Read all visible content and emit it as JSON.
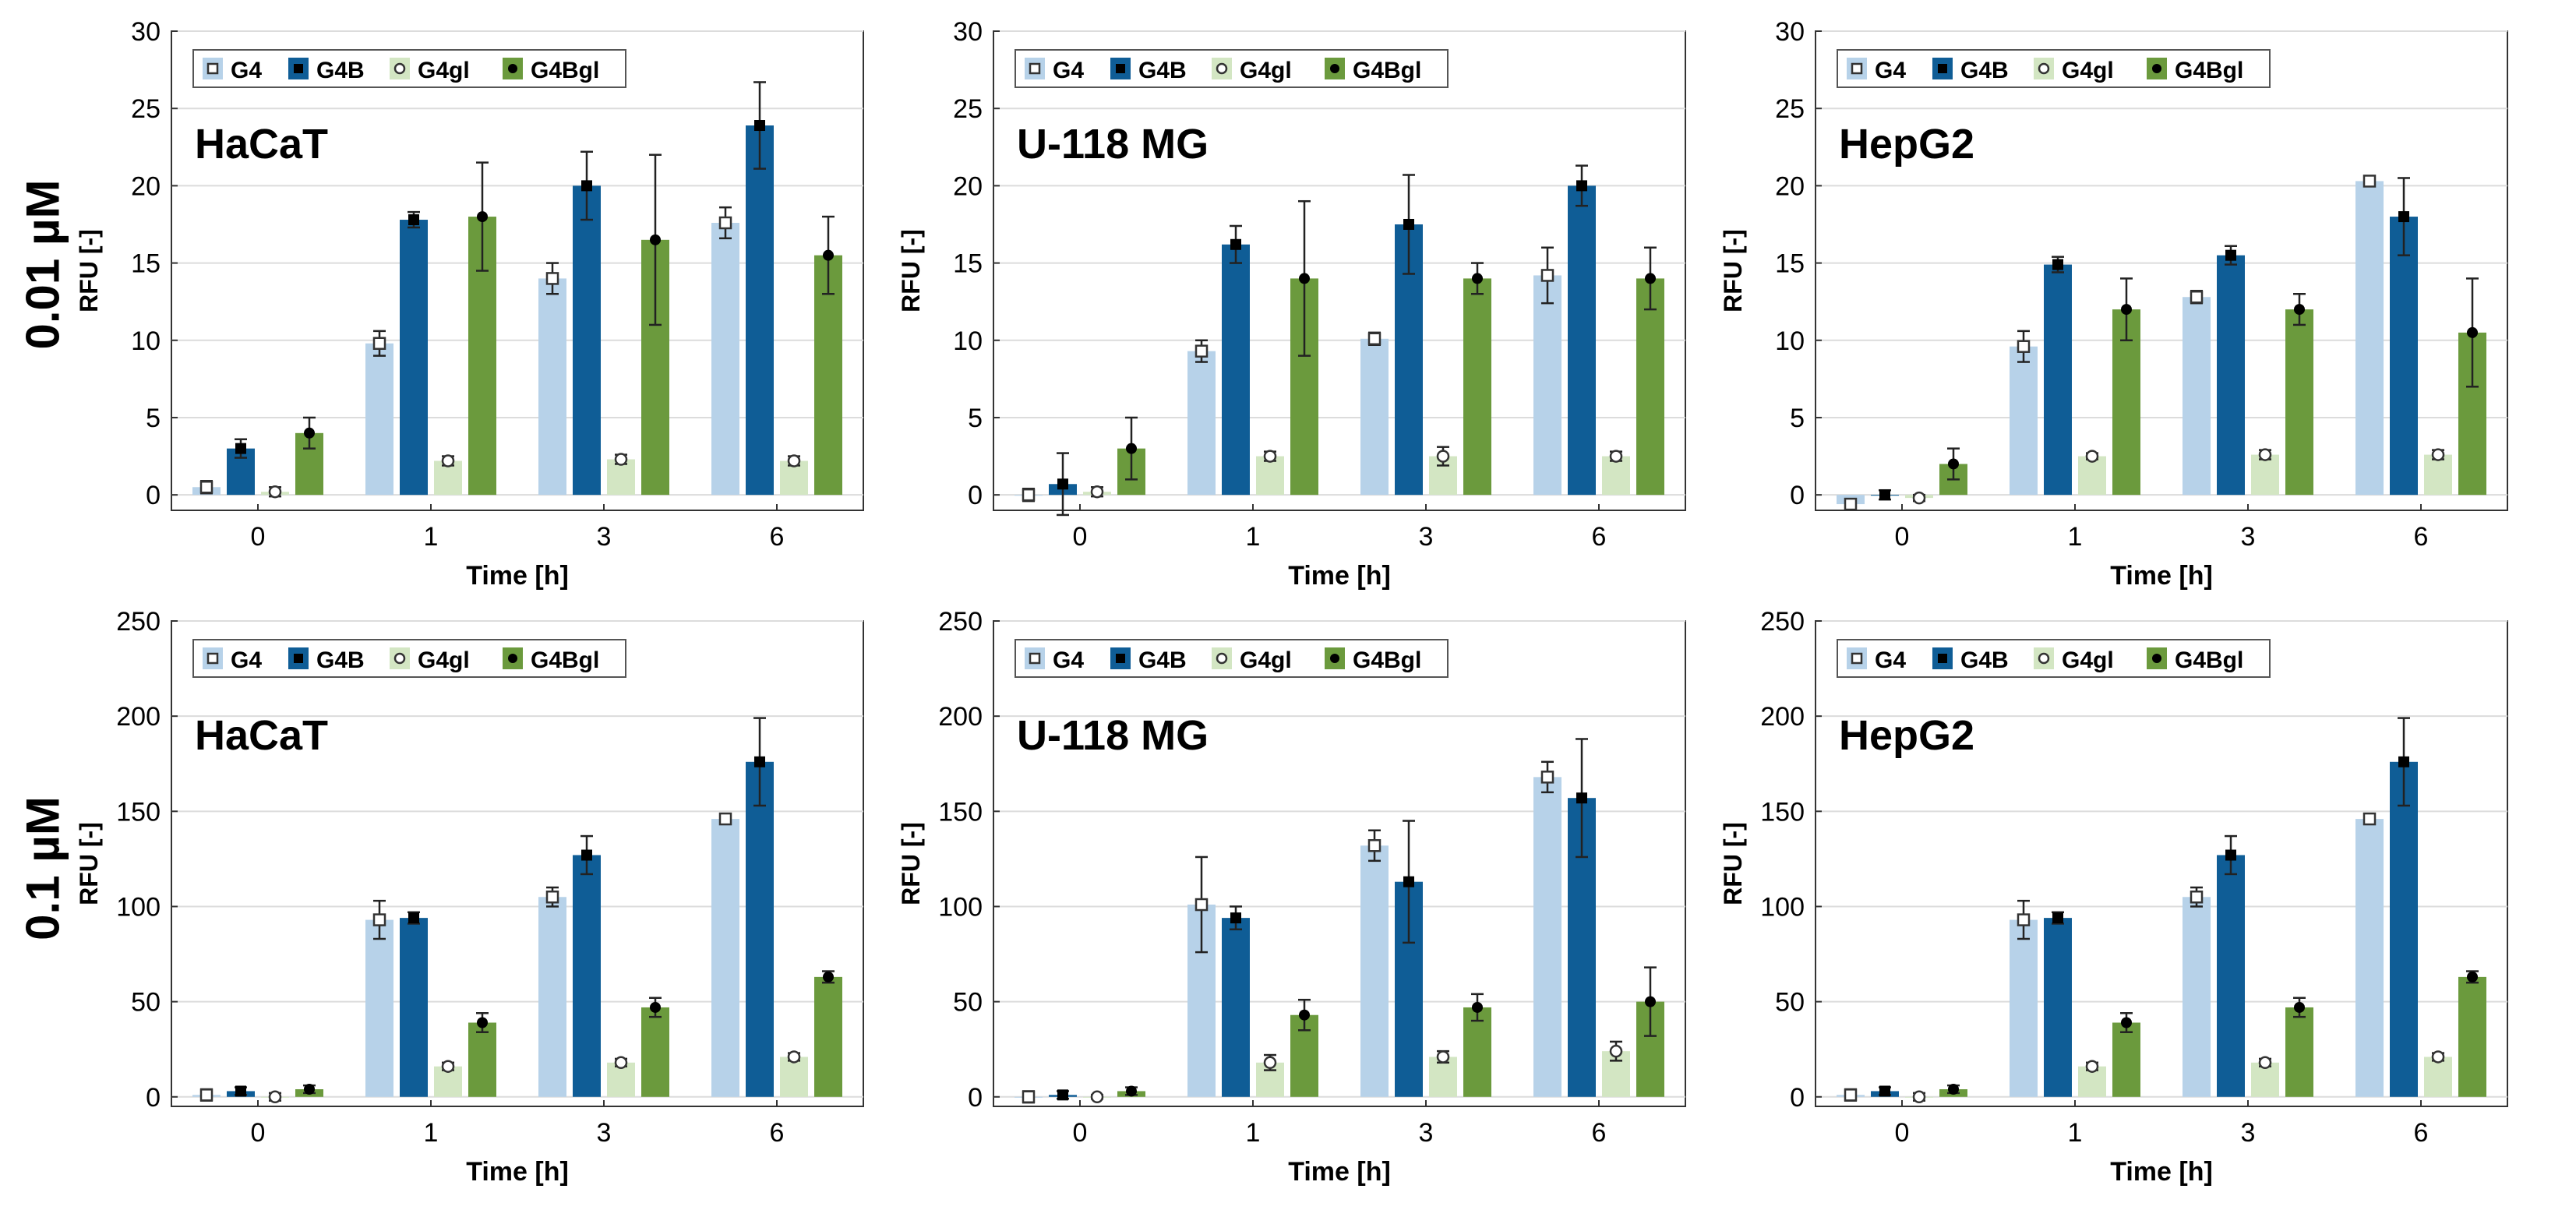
{
  "figure": {
    "row_labels": [
      "0.01 µM",
      "0.1 µM"
    ]
  },
  "colors": {
    "G4": "#b7d2e9",
    "G4B": "#0f5d96",
    "G4gl": "#d3e6c3",
    "G4Bgl": "#6b9a3d",
    "grid": "#dcdcdc",
    "axis": "#333333"
  },
  "chart_data": [
    {
      "type": "bar",
      "title": "HaCaT",
      "xlabel": "Time [h]",
      "ylabel": "RFU [-]",
      "ylim": [
        -1,
        30
      ],
      "yticks": [
        0,
        5,
        10,
        15,
        20,
        25,
        30
      ],
      "grid": true,
      "legend_position": "top-left",
      "categories": [
        "0",
        "1",
        "3",
        "6"
      ],
      "series": [
        {
          "name": "G4",
          "values": [
            0.5,
            9.8,
            14.0,
            17.6
          ],
          "errors": [
            0.4,
            0.8,
            1.0,
            1.0
          ]
        },
        {
          "name": "G4B",
          "values": [
            3.0,
            17.8,
            20.0,
            23.9
          ],
          "errors": [
            0.6,
            0.5,
            2.2,
            2.8
          ]
        },
        {
          "name": "G4gl",
          "values": [
            0.2,
            2.2,
            2.3,
            2.2
          ],
          "errors": [
            0.3,
            0.3,
            0.3,
            0.3
          ]
        },
        {
          "name": "G4Bgl",
          "values": [
            4.0,
            18.0,
            16.5,
            15.5
          ],
          "errors": [
            1.0,
            3.5,
            5.5,
            2.5
          ]
        }
      ]
    },
    {
      "type": "bar",
      "title": "U-118 MG",
      "xlabel": "Time [h]",
      "ylabel": "RFU [-]",
      "ylim": [
        -1,
        30
      ],
      "yticks": [
        0,
        5,
        10,
        15,
        20,
        25,
        30
      ],
      "grid": true,
      "legend_position": "top-left",
      "categories": [
        "0",
        "1",
        "3",
        "6"
      ],
      "series": [
        {
          "name": "G4",
          "values": [
            0.0,
            9.3,
            10.1,
            14.2
          ],
          "errors": [
            0.4,
            0.7,
            0.4,
            1.8
          ]
        },
        {
          "name": "G4B",
          "values": [
            0.7,
            16.2,
            17.5,
            20.0
          ],
          "errors": [
            2.0,
            1.2,
            3.2,
            1.3
          ]
        },
        {
          "name": "G4gl",
          "values": [
            0.2,
            2.5,
            2.5,
            2.5
          ],
          "errors": [
            0.3,
            0.3,
            0.6,
            0.3
          ]
        },
        {
          "name": "G4Bgl",
          "values": [
            3.0,
            14.0,
            14.0,
            14.0
          ],
          "errors": [
            2.0,
            5.0,
            1.0,
            2.0
          ]
        }
      ]
    },
    {
      "type": "bar",
      "title": "HepG2",
      "xlabel": "Time [h]",
      "ylabel": "RFU [-]",
      "ylim": [
        -1,
        30
      ],
      "yticks": [
        0,
        5,
        10,
        15,
        20,
        25,
        30
      ],
      "grid": true,
      "legend_position": "top-left",
      "categories": [
        "0",
        "1",
        "3",
        "6"
      ],
      "series": [
        {
          "name": "G4",
          "values": [
            -0.6,
            9.6,
            12.8,
            20.3
          ],
          "errors": [
            0.3,
            1.0,
            0.4,
            0.3
          ]
        },
        {
          "name": "G4B",
          "values": [
            0.0,
            14.9,
            15.5,
            18.0
          ],
          "errors": [
            0.3,
            0.5,
            0.6,
            2.5
          ]
        },
        {
          "name": "G4gl",
          "values": [
            -0.2,
            2.5,
            2.6,
            2.6
          ],
          "errors": [
            0.2,
            0.2,
            0.3,
            0.3
          ]
        },
        {
          "name": "G4Bgl",
          "values": [
            2.0,
            12.0,
            12.0,
            10.5
          ],
          "errors": [
            1.0,
            2.0,
            1.0,
            3.5
          ]
        }
      ]
    },
    {
      "type": "bar",
      "title": "HaCaT",
      "xlabel": "Time [h]",
      "ylabel": "RFU [-]",
      "ylim": [
        -5,
        250
      ],
      "yticks": [
        0,
        50,
        100,
        150,
        200,
        250
      ],
      "grid": true,
      "legend_position": "top-left",
      "categories": [
        "0",
        "1",
        "3",
        "6"
      ],
      "series": [
        {
          "name": "G4",
          "values": [
            1,
            93,
            105,
            146
          ],
          "errors": [
            3,
            10,
            5,
            2
          ]
        },
        {
          "name": "G4B",
          "values": [
            3,
            94,
            127,
            176
          ],
          "errors": [
            2,
            3,
            10,
            23
          ]
        },
        {
          "name": "G4gl",
          "values": [
            0,
            16,
            18,
            21
          ],
          "errors": [
            2,
            2,
            2,
            2
          ]
        },
        {
          "name": "G4Bgl",
          "values": [
            4,
            39,
            47,
            63
          ],
          "errors": [
            2,
            5,
            5,
            3
          ]
        }
      ]
    },
    {
      "type": "bar",
      "title": "U-118 MG",
      "xlabel": "Time [h]",
      "ylabel": "RFU [-]",
      "ylim": [
        -5,
        250
      ],
      "yticks": [
        0,
        50,
        100,
        150,
        200,
        250
      ],
      "grid": true,
      "legend_position": "top-left",
      "categories": [
        "0",
        "1",
        "3",
        "6"
      ],
      "series": [
        {
          "name": "G4",
          "values": [
            0,
            101,
            132,
            168
          ],
          "errors": [
            3,
            25,
            8,
            8
          ]
        },
        {
          "name": "G4B",
          "values": [
            1,
            94,
            113,
            157
          ],
          "errors": [
            2,
            6,
            32,
            31
          ]
        },
        {
          "name": "G4gl",
          "values": [
            0,
            18,
            21,
            24
          ],
          "errors": [
            1,
            4,
            3,
            5
          ]
        },
        {
          "name": "G4Bgl",
          "values": [
            3,
            43,
            47,
            50
          ],
          "errors": [
            2,
            8,
            7,
            18
          ]
        }
      ]
    },
    {
      "type": "bar",
      "title": "HepG2",
      "xlabel": "Time [h]",
      "ylabel": "RFU [-]",
      "ylim": [
        -5,
        250
      ],
      "yticks": [
        0,
        50,
        100,
        150,
        200,
        250
      ],
      "grid": true,
      "legend_position": "top-left",
      "categories": [
        "0",
        "1",
        "3",
        "6"
      ],
      "series": [
        {
          "name": "G4",
          "values": [
            1,
            93,
            105,
            146
          ],
          "errors": [
            3,
            10,
            5,
            2
          ]
        },
        {
          "name": "G4B",
          "values": [
            3,
            94,
            127,
            176
          ],
          "errors": [
            2,
            3,
            10,
            23
          ]
        },
        {
          "name": "G4gl",
          "values": [
            0,
            16,
            18,
            21
          ],
          "errors": [
            2,
            2,
            2,
            2
          ]
        },
        {
          "name": "G4Bgl",
          "values": [
            4,
            39,
            47,
            63
          ],
          "errors": [
            2,
            5,
            5,
            3
          ]
        }
      ]
    }
  ]
}
